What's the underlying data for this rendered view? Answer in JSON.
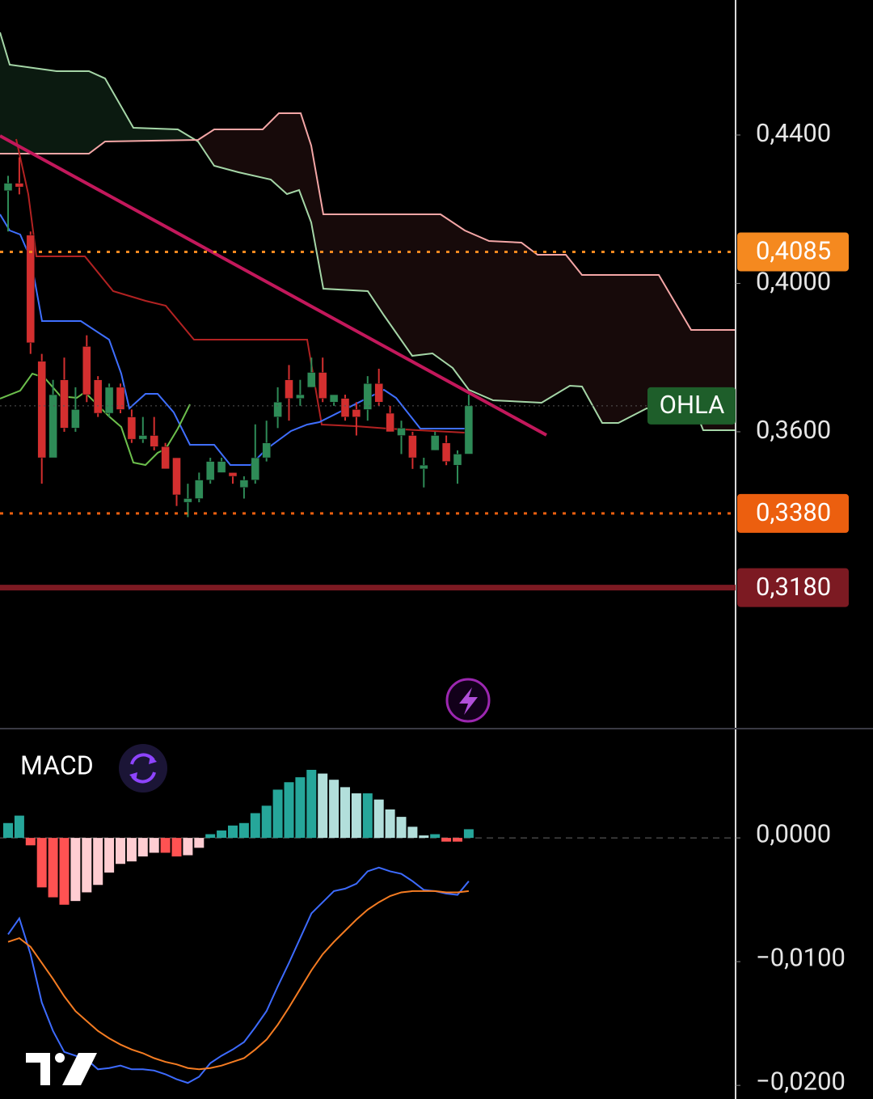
{
  "chart_data": [
    {
      "type": "candlestick",
      "up_color": "#2e8b57",
      "down_color": "#d32f2f",
      "open": [
        0.425,
        0.427,
        0.413,
        0.379,
        0.353,
        0.374,
        0.361,
        0.383,
        0.374,
        0.365,
        0.372,
        0.364,
        0.358,
        0.359,
        0.356,
        0.353,
        0.341,
        0.342,
        0.347,
        0.349,
        0.349,
        0.345,
        0.347,
        0.353,
        0.364,
        0.374,
        0.369,
        0.372,
        0.376,
        0.368,
        0.369,
        0.366,
        0.366,
        0.373,
        0.365,
        0.359,
        0.359,
        0.35,
        0.355,
        0.357,
        0.351,
        0.354
      ],
      "high": [
        0.429,
        0.434,
        0.414,
        0.381,
        0.374,
        0.38,
        0.372,
        0.386,
        0.375,
        0.373,
        0.373,
        0.366,
        0.364,
        0.364,
        0.357,
        0.353,
        0.346,
        0.349,
        0.353,
        0.353,
        0.349,
        0.348,
        0.362,
        0.363,
        0.372,
        0.378,
        0.374,
        0.38,
        0.38,
        0.37,
        0.37,
        0.368,
        0.375,
        0.377,
        0.367,
        0.363,
        0.36,
        0.353,
        0.36,
        0.359,
        0.355,
        0.37
      ],
      "low": [
        0.414,
        0.424,
        0.381,
        0.346,
        0.353,
        0.36,
        0.36,
        0.368,
        0.364,
        0.364,
        0.365,
        0.357,
        0.357,
        0.355,
        0.35,
        0.34,
        0.337,
        0.341,
        0.346,
        0.349,
        0.346,
        0.342,
        0.346,
        0.352,
        0.361,
        0.363,
        0.367,
        0.372,
        0.368,
        0.367,
        0.363,
        0.359,
        0.363,
        0.367,
        0.36,
        0.354,
        0.35,
        0.345,
        0.355,
        0.351,
        0.346,
        0.354
      ],
      "close": [
        0.427,
        0.426,
        0.384,
        0.353,
        0.37,
        0.361,
        0.366,
        0.37,
        0.365,
        0.372,
        0.366,
        0.358,
        0.359,
        0.356,
        0.35,
        0.343,
        0.342,
        0.347,
        0.352,
        0.352,
        0.348,
        0.347,
        0.353,
        0.357,
        0.368,
        0.369,
        0.37,
        0.376,
        0.369,
        0.37,
        0.364,
        0.364,
        0.373,
        0.368,
        0.36,
        0.361,
        0.353,
        0.351,
        0.359,
        0.352,
        0.354,
        0.367
      ],
      "ylim": [
        0.2802,
        0.4764
      ],
      "yticks": [
        {
          "value": 0.44,
          "label": "0,4400"
        },
        {
          "value": 0.4,
          "label": "0,4000"
        },
        {
          "value": 0.36,
          "label": "0,3600"
        }
      ],
      "levels": [
        {
          "value": 0.4085,
          "label": "0,4085",
          "color": "#f5891f",
          "style": "dotted"
        },
        {
          "value": 0.338,
          "label": "0,3380",
          "color": "#ec5f0f",
          "style": "dotted"
        },
        {
          "value": 0.318,
          "label": "0,3180",
          "color": "#7c1a22",
          "style": "solid"
        }
      ],
      "price_tag": {
        "value": 0.367,
        "label": "OHLA",
        "color": "#1e5e2a"
      }
    },
    {
      "type": "macd",
      "title": "MACD",
      "histogram": [
        0.0012,
        0.0018,
        -0.0006,
        -0.004,
        -0.0048,
        -0.0054,
        -0.0051,
        -0.0044,
        -0.0038,
        -0.0028,
        -0.0021,
        -0.0019,
        -0.0015,
        -0.0012,
        -0.0012,
        -0.0015,
        -0.0014,
        -0.0008,
        0.0003,
        0.0006,
        0.001,
        0.0012,
        0.002,
        0.0026,
        0.0039,
        0.0045,
        0.0049,
        0.0055,
        0.0052,
        0.0047,
        0.0041,
        0.0036,
        0.0036,
        0.0031,
        0.0023,
        0.0017,
        0.0009,
        0.0002,
        0.0003,
        -0.0003,
        -0.0003,
        0.0007
      ],
      "histogram_colors": {
        "up_rising": "#26a69a",
        "up_falling": "#b2dfdb",
        "down_falling": "#ff5252",
        "down_rising": "#ffcdd2"
      },
      "series": [
        {
          "color": "#3d6bff",
          "values": [
            -0.0078,
            -0.0065,
            -0.0094,
            -0.0133,
            -0.0156,
            -0.0173,
            -0.0176,
            -0.0179,
            -0.0187,
            -0.0186,
            -0.0184,
            -0.0187,
            -0.0187,
            -0.0188,
            -0.0191,
            -0.0195,
            -0.0198,
            -0.0193,
            -0.0182,
            -0.0176,
            -0.0171,
            -0.0165,
            -0.0153,
            -0.014,
            -0.012,
            -0.0101,
            -0.0081,
            -0.0061,
            -0.0052,
            -0.0043,
            -0.0041,
            -0.0037,
            -0.0027,
            -0.0024,
            -0.0027,
            -0.0029,
            -0.0035,
            -0.0042,
            -0.0043,
            -0.0045,
            -0.0046,
            -0.0035
          ]
        },
        {
          "color": "#f57c22",
          "values": [
            -0.0084,
            -0.0081,
            -0.0088,
            -0.0101,
            -0.0114,
            -0.0128,
            -0.014,
            -0.0148,
            -0.0156,
            -0.0162,
            -0.0167,
            -0.0171,
            -0.0174,
            -0.0178,
            -0.0181,
            -0.0183,
            -0.0186,
            -0.0187,
            -0.0186,
            -0.0184,
            -0.0181,
            -0.0178,
            -0.0171,
            -0.0163,
            -0.0151,
            -0.0137,
            -0.0122,
            -0.0107,
            -0.0094,
            -0.0084,
            -0.0075,
            -0.0066,
            -0.0058,
            -0.0052,
            -0.0047,
            -0.0044,
            -0.0043,
            -0.0043,
            -0.0043,
            -0.0044,
            -0.0044,
            -0.0043
          ]
        }
      ],
      "ylim": [
        -0.0211,
        0.0087
      ],
      "yticks": [
        {
          "value": 0,
          "label": "0,0000"
        },
        {
          "value": -0.01,
          "label": "−0,0100"
        },
        {
          "value": -0.02,
          "label": "−0,0200"
        }
      ]
    }
  ]
}
